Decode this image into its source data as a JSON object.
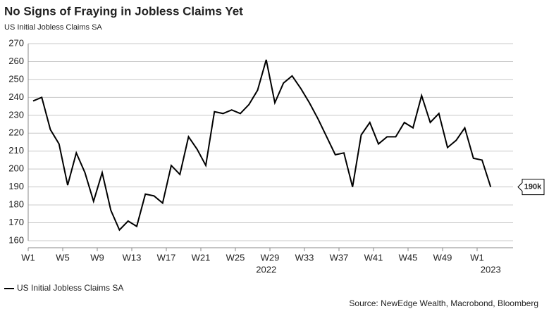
{
  "chart_data": {
    "type": "line",
    "title": "No Signs of Fraying in Jobless Claims Yet",
    "subtitle": "US Initial Jobless Claims SA",
    "source": "Source: NewEdge Wealth, Macrobond, Bloomberg",
    "categories": [
      "W1",
      null,
      null,
      null,
      "W5",
      null,
      null,
      null,
      "W9",
      null,
      null,
      null,
      "W13",
      null,
      null,
      null,
      "W17",
      null,
      null,
      null,
      "W21",
      null,
      null,
      null,
      "W25",
      null,
      null,
      null,
      "W29",
      null,
      null,
      null,
      "W33",
      null,
      null,
      null,
      "W37",
      null,
      null,
      null,
      "W41",
      null,
      null,
      null,
      "W45",
      null,
      null,
      null,
      "W49",
      null,
      null,
      null,
      "W1",
      null
    ],
    "years": [
      {
        "label": "2022",
        "index": 27
      },
      {
        "label": "2023",
        "index": 53
      }
    ],
    "series": [
      {
        "name": "US Initial Jobless Claims SA",
        "color": "#000000",
        "values": [
          238,
          240,
          222,
          214,
          191,
          209,
          198,
          182,
          198,
          177,
          166,
          171,
          168,
          186,
          185,
          181,
          202,
          197,
          218,
          211,
          202,
          232,
          231,
          233,
          231,
          236,
          244,
          261,
          237,
          248,
          252,
          245,
          237,
          228,
          218,
          208,
          209,
          190,
          219,
          226,
          214,
          218,
          218,
          226,
          223,
          241,
          226,
          231,
          212,
          216,
          223,
          206,
          205,
          190
        ]
      }
    ],
    "end_label": "190k",
    "ylim": [
      160,
      270
    ],
    "yticks": [
      160,
      170,
      180,
      190,
      200,
      210,
      220,
      230,
      240,
      250,
      260,
      270
    ],
    "grid": true
  }
}
